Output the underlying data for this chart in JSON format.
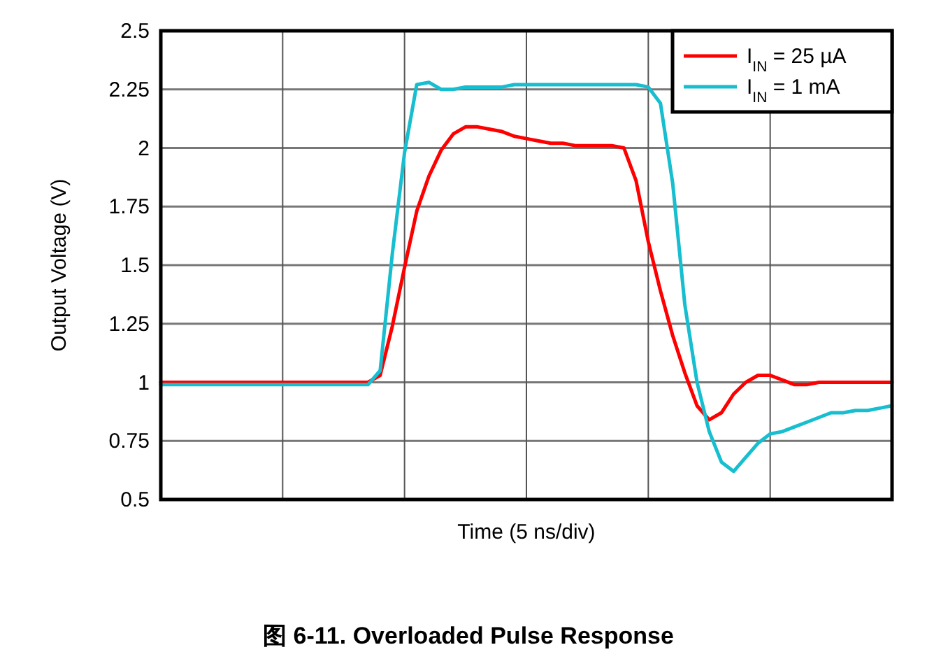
{
  "chart_data": {
    "type": "line",
    "title": "图 6-11. Overloaded Pulse Response",
    "xlabel": "Time (5 ns/div)",
    "ylabel": "Output Voltage (V)",
    "categories": [
      null,
      null,
      null,
      null,
      null,
      null,
      null,
      null,
      null,
      null,
      null,
      null,
      null,
      null,
      null,
      null,
      null,
      null,
      null,
      null,
      null,
      null,
      null,
      null,
      null,
      null,
      null,
      null,
      null,
      null,
      null,
      null,
      null,
      null,
      null,
      null,
      null,
      null,
      null,
      null,
      null,
      null,
      null,
      null,
      null,
      null,
      null,
      null,
      null,
      null,
      null,
      null,
      null,
      null,
      null,
      null,
      null,
      null,
      null,
      null,
      null
    ],
    "series": [
      {
        "name": "I$_{IN}$ = 25 µA",
        "color": "#ff0000",
        "values": [
          1.0,
          1.0,
          1.0,
          1.0,
          1.0,
          1.0,
          1.0,
          1.0,
          1.0,
          1.0,
          1.0,
          1.0,
          1.0,
          1.0,
          1.0,
          1.0,
          1.0,
          1.0,
          1.03,
          1.24,
          1.49,
          1.73,
          1.88,
          1.99,
          2.06,
          2.09,
          2.09,
          2.08,
          2.07,
          2.05,
          2.04,
          2.03,
          2.02,
          2.02,
          2.01,
          2.01,
          2.01,
          2.01,
          2.0,
          1.86,
          1.6,
          1.39,
          1.2,
          1.04,
          0.9,
          0.84,
          0.87,
          0.95,
          1.0,
          1.03,
          1.03,
          1.01,
          0.99,
          0.99,
          1.0,
          1.0,
          1.0,
          1.0,
          1.0,
          1.0,
          1.0
        ]
      },
      {
        "name": "I$_{IN}$ = 1 mA",
        "color": "#17becf",
        "values": [
          0.99,
          0.99,
          0.99,
          0.99,
          0.99,
          0.99,
          0.99,
          0.99,
          0.99,
          0.99,
          0.99,
          0.99,
          0.99,
          0.99,
          0.99,
          0.99,
          0.99,
          0.99,
          1.05,
          1.55,
          1.98,
          2.27,
          2.28,
          2.25,
          2.25,
          2.26,
          2.26,
          2.26,
          2.26,
          2.27,
          2.27,
          2.27,
          2.27,
          2.27,
          2.27,
          2.27,
          2.27,
          2.27,
          2.27,
          2.27,
          2.26,
          2.19,
          1.85,
          1.33,
          1.0,
          0.79,
          0.66,
          0.62,
          0.68,
          0.74,
          0.78,
          0.79,
          0.81,
          0.83,
          0.85,
          0.87,
          0.87,
          0.88,
          0.88,
          0.89,
          0.9
        ]
      }
    ],
    "ylim": [
      0.5,
      2.5
    ],
    "yticks": [
      0.5,
      0.75,
      1,
      1.25,
      1.5,
      1.75,
      2,
      2.25,
      2.5
    ],
    "grid": true,
    "legend": "top right",
    "marker": "none",
    "line_style": "solid"
  }
}
